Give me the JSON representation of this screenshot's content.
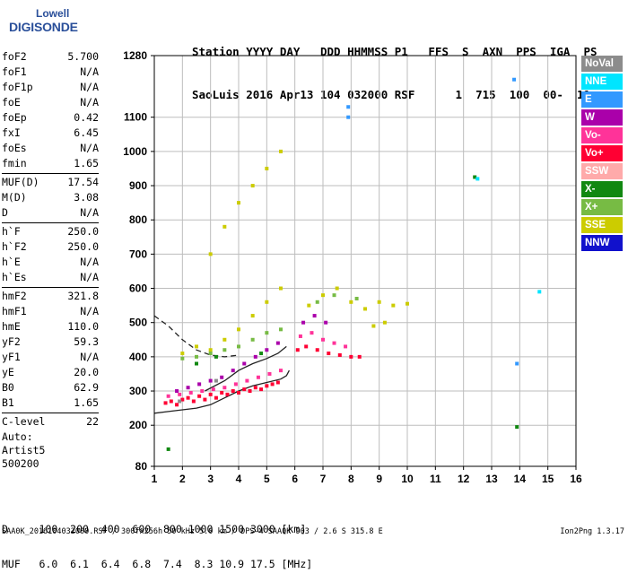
{
  "logo": {
    "line1": "Lowell",
    "line2": "DIGISONDE"
  },
  "header": {
    "labels": "Station YYYY DAY   DDD HHMMSS P1   FFS  S  AXN  PPS  IGA  PS",
    "values": "SaoLuis 2016 Apr13 104 032000 RSF      1  715  100  00-  11"
  },
  "params": [
    {
      "name": "foF2",
      "value": "5.700"
    },
    {
      "name": "foF1",
      "value": "N/A"
    },
    {
      "name": "foF1p",
      "value": "N/A"
    },
    {
      "name": "foE",
      "value": "N/A"
    },
    {
      "name": "foEp",
      "value": "0.42"
    },
    {
      "name": "fxI",
      "value": "6.45"
    },
    {
      "name": "foEs",
      "value": "N/A"
    },
    {
      "name": "fmin",
      "value": "1.65"
    },
    {
      "name": "MUF(D)",
      "value": "17.54"
    },
    {
      "name": "M(D)",
      "value": "3.08"
    },
    {
      "name": "D",
      "value": "N/A"
    },
    {
      "name": "h`F",
      "value": "250.0"
    },
    {
      "name": "h`F2",
      "value": "250.0"
    },
    {
      "name": "h`E",
      "value": "N/A"
    },
    {
      "name": "h`Es",
      "value": "N/A"
    },
    {
      "name": "hmF2",
      "value": "321.8"
    },
    {
      "name": "hmF1",
      "value": "N/A"
    },
    {
      "name": "hmE",
      "value": "110.0"
    },
    {
      "name": "yF2",
      "value": "59.3"
    },
    {
      "name": "yF1",
      "value": "N/A"
    },
    {
      "name": "yE",
      "value": "20.0"
    },
    {
      "name": "B0",
      "value": "62.9"
    },
    {
      "name": "B1",
      "value": "1.65"
    },
    {
      "name": "C-level",
      "value": "22"
    }
  ],
  "auto": {
    "line1": "Auto:",
    "line2": "Artist5",
    "line3": "500200"
  },
  "legend": [
    {
      "label": "NoVal",
      "color": "#8c8c8c"
    },
    {
      "label": "NNE",
      "color": "#00e5ff"
    },
    {
      "label": "E",
      "color": "#3399ff"
    },
    {
      "label": "W",
      "color": "#aa00aa"
    },
    {
      "label": "Vo-",
      "color": "#ff3399"
    },
    {
      "label": "Vo+",
      "color": "#ff0033"
    },
    {
      "label": "SSW",
      "color": "#ffaaaa"
    },
    {
      "label": "X-",
      "color": "#118811"
    },
    {
      "label": "X+",
      "color": "#77bb44"
    },
    {
      "label": "SSE",
      "color": "#cccc00"
    },
    {
      "label": "NNW",
      "color": "#1111cc"
    }
  ],
  "dmuf": {
    "d_line": "D     100  200  400  600  800 1000 1500 3000 [km]",
    "muf_line": "MUF   6.0  6.1  6.4  6.8  7.4  8.3 10.9 17.5 [MHz]"
  },
  "footer": {
    "left": "SAA0K_2016104032000.RSF / 300fx256h 50 kHz 5.0 km / DPS-4 SAA0K 903 / 2.6 S 315.8 E",
    "right": "Ion2Png 1.3.17"
  },
  "chart_data": {
    "type": "scatter",
    "x_ticks": [
      1,
      2,
      3,
      4,
      5,
      6,
      7,
      8,
      9,
      10,
      11,
      12,
      13,
      14,
      15,
      16
    ],
    "y_ticks": [
      80,
      200,
      300,
      400,
      500,
      600,
      700,
      800,
      900,
      1000,
      1100,
      1280
    ],
    "xlim": [
      1,
      16
    ],
    "ylim": [
      80,
      1280
    ],
    "grid": true,
    "series": [
      {
        "color": "#ff0033",
        "points": [
          [
            1.4,
            265
          ],
          [
            1.6,
            270
          ],
          [
            1.8,
            260
          ],
          [
            2.0,
            275
          ],
          [
            2.2,
            280
          ],
          [
            2.4,
            270
          ],
          [
            2.6,
            285
          ],
          [
            2.8,
            275
          ],
          [
            3.0,
            290
          ],
          [
            3.2,
            280
          ],
          [
            3.4,
            295
          ],
          [
            3.6,
            290
          ],
          [
            3.8,
            300
          ],
          [
            4.0,
            295
          ],
          [
            4.2,
            305
          ],
          [
            4.4,
            300
          ],
          [
            4.6,
            310
          ],
          [
            4.8,
            305
          ],
          [
            5.0,
            315
          ],
          [
            5.2,
            320
          ],
          [
            5.4,
            325
          ],
          [
            6.1,
            420
          ],
          [
            6.4,
            430
          ],
          [
            6.8,
            420
          ],
          [
            7.2,
            410
          ],
          [
            7.6,
            405
          ],
          [
            8.0,
            400
          ],
          [
            8.3,
            400
          ]
        ]
      },
      {
        "color": "#ff3399",
        "points": [
          [
            1.5,
            285
          ],
          [
            1.9,
            290
          ],
          [
            2.3,
            295
          ],
          [
            2.7,
            300
          ],
          [
            3.1,
            305
          ],
          [
            3.5,
            310
          ],
          [
            3.9,
            320
          ],
          [
            4.3,
            330
          ],
          [
            4.7,
            340
          ],
          [
            5.1,
            350
          ],
          [
            5.5,
            360
          ],
          [
            6.2,
            460
          ],
          [
            6.6,
            470
          ],
          [
            7.0,
            450
          ],
          [
            7.4,
            440
          ],
          [
            7.8,
            430
          ]
        ]
      },
      {
        "color": "#aa00aa",
        "points": [
          [
            1.8,
            300
          ],
          [
            2.2,
            310
          ],
          [
            2.6,
            320
          ],
          [
            3.0,
            330
          ],
          [
            3.4,
            340
          ],
          [
            3.8,
            360
          ],
          [
            4.2,
            380
          ],
          [
            4.6,
            400
          ],
          [
            5.0,
            420
          ],
          [
            5.4,
            440
          ],
          [
            6.3,
            500
          ],
          [
            6.7,
            520
          ],
          [
            7.1,
            500
          ]
        ]
      },
      {
        "color": "#cccc00",
        "points": [
          [
            2.0,
            410
          ],
          [
            2.5,
            430
          ],
          [
            3.0,
            420
          ],
          [
            3.5,
            450
          ],
          [
            4.0,
            480
          ],
          [
            4.5,
            520
          ],
          [
            5.0,
            560
          ],
          [
            5.5,
            600
          ],
          [
            3.0,
            700
          ],
          [
            3.5,
            780
          ],
          [
            4.0,
            850
          ],
          [
            4.5,
            900
          ],
          [
            5.0,
            950
          ],
          [
            5.5,
            1000
          ],
          [
            6.5,
            550
          ],
          [
            7.0,
            580
          ],
          [
            7.5,
            600
          ],
          [
            8.0,
            560
          ],
          [
            8.5,
            540
          ],
          [
            9.0,
            560
          ],
          [
            9.5,
            550
          ],
          [
            10.0,
            555
          ],
          [
            9.2,
            500
          ],
          [
            8.8,
            490
          ]
        ]
      },
      {
        "color": "#77bb44",
        "points": [
          [
            2.0,
            395
          ],
          [
            2.5,
            400
          ],
          [
            3.0,
            410
          ],
          [
            3.5,
            420
          ],
          [
            4.0,
            430
          ],
          [
            4.5,
            450
          ],
          [
            5.0,
            470
          ],
          [
            5.5,
            480
          ],
          [
            6.8,
            560
          ],
          [
            7.4,
            580
          ],
          [
            8.2,
            570
          ]
        ]
      },
      {
        "color": "#118811",
        "points": [
          [
            1.5,
            130
          ],
          [
            2.5,
            380
          ],
          [
            3.2,
            400
          ],
          [
            4.8,
            410
          ],
          [
            12.4,
            925
          ],
          [
            13.9,
            195
          ]
        ]
      },
      {
        "color": "#3399ff",
        "points": [
          [
            7.9,
            1100
          ],
          [
            7.9,
            1130
          ],
          [
            13.8,
            1210
          ],
          [
            13.9,
            380
          ]
        ]
      },
      {
        "color": "#00e5ff",
        "points": [
          [
            12.5,
            920
          ],
          [
            14.7,
            590
          ]
        ]
      },
      {
        "color": "#8c8c8c",
        "points": [
          [
            1.9,
            270
          ],
          [
            3.2,
            330
          ]
        ]
      }
    ],
    "traces": [
      {
        "style": "dashed",
        "points": [
          [
            1.0,
            520
          ],
          [
            1.5,
            490
          ],
          [
            2.0,
            450
          ],
          [
            2.5,
            420
          ],
          [
            3.0,
            405
          ],
          [
            3.5,
            400
          ],
          [
            4.0,
            405
          ]
        ]
      },
      {
        "style": "solid",
        "points": [
          [
            1.0,
            235
          ],
          [
            1.5,
            240
          ],
          [
            2.0,
            245
          ],
          [
            2.5,
            250
          ],
          [
            3.0,
            260
          ],
          [
            3.5,
            280
          ],
          [
            4.0,
            300
          ],
          [
            4.5,
            315
          ],
          [
            5.0,
            325
          ],
          [
            5.5,
            335
          ],
          [
            5.7,
            345
          ],
          [
            5.8,
            360
          ]
        ]
      },
      {
        "style": "solid",
        "points": [
          [
            2.8,
            300
          ],
          [
            3.5,
            330
          ],
          [
            4.0,
            360
          ],
          [
            4.5,
            380
          ],
          [
            5.0,
            395
          ],
          [
            5.4,
            410
          ],
          [
            5.7,
            430
          ]
        ]
      }
    ]
  }
}
